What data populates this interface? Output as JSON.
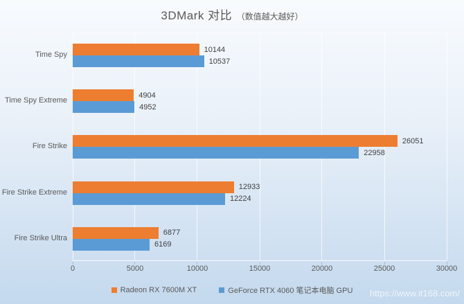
{
  "title": {
    "main": "3DMark 对比",
    "sub": "（数值越大越好）"
  },
  "watermark": "https://www.it168.com/",
  "colors": {
    "series1": "#ED7D31",
    "series2": "#5B9BD5",
    "axis_text": "#595959",
    "value_text": "#404040",
    "bg_top": "#F8FBFE",
    "bg_bottom": "#C4D9EE",
    "gridline": "rgba(255,255,255,0.75)"
  },
  "chart_data": {
    "type": "bar",
    "orientation": "horizontal",
    "title": "3DMark 对比（数值越大越好）",
    "categories": [
      "Time Spy",
      "Time Spy Extreme",
      "Fire Strike",
      "Fire Strike Extreme",
      "Fire Strike Ultra"
    ],
    "series": [
      {
        "name": "Radeon RX 7600M XT",
        "color": "#ED7D31",
        "values": [
          10144,
          4904,
          26051,
          12933,
          6877
        ]
      },
      {
        "name": "GeForce RTX 4060 笔记本电脑 GPU",
        "color": "#5B9BD5",
        "values": [
          10537,
          4952,
          22958,
          12224,
          6169
        ]
      }
    ],
    "xlim": [
      0,
      30000
    ],
    "xticks": [
      0,
      5000,
      10000,
      15000,
      20000,
      25000,
      30000
    ],
    "grid": true,
    "data_labels": true,
    "legend_position": "bottom"
  }
}
